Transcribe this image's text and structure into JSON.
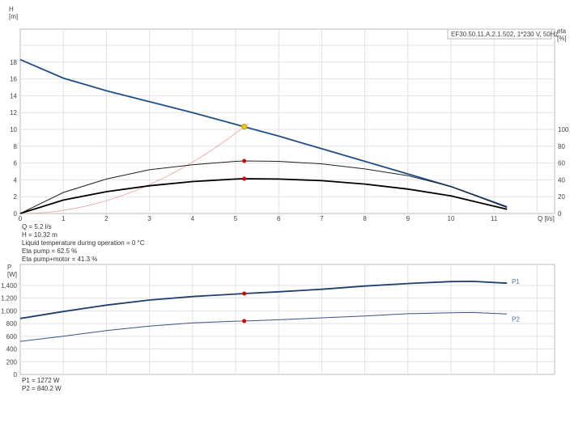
{
  "chart_data": [
    {
      "type": "line",
      "title": "EF30.50.11.A.2.1.502, 1*230 V, 50Hz",
      "xlabel": "Q [l/s]",
      "ylabel": "H\n[m]",
      "y2label": "eta\n[%]",
      "xlim": [
        0,
        12
      ],
      "ylim": [
        0,
        20
      ],
      "y2lim": [
        0,
        100
      ],
      "xticks": [
        0,
        1,
        2,
        3,
        4,
        5,
        6,
        7,
        8,
        9,
        10,
        11
      ],
      "yticks": [
        0,
        2,
        4,
        6,
        8,
        10,
        12,
        14,
        16,
        18
      ],
      "y2ticks": [
        0,
        20,
        40,
        60,
        80,
        100
      ],
      "grid": true,
      "x": [
        0,
        1,
        2,
        3,
        4,
        5,
        5.2,
        6,
        7,
        8,
        9,
        10,
        11.3
      ],
      "series": [
        {
          "key": "H",
          "axis": "left",
          "color": "#1f4e87",
          "values": [
            18.3,
            16.1,
            14.6,
            13.3,
            12.0,
            10.6,
            10.32,
            9.2,
            7.7,
            6.2,
            4.7,
            3.2,
            0.8
          ]
        },
        {
          "key": "eta_pump",
          "axis": "right",
          "color": "#222222",
          "values": [
            0,
            25,
            41,
            52,
            58,
            62,
            62.5,
            62,
            59,
            53,
            45,
            32,
            7
          ]
        },
        {
          "key": "eta_total",
          "axis": "right",
          "color": "#000000",
          "values": [
            0,
            16,
            26,
            33,
            38,
            41,
            41.3,
            41,
            39,
            35,
            29,
            21,
            5
          ]
        }
      ],
      "system_curve": {
        "color": "#e8a0a0",
        "through": [
          5.2,
          10.32
        ]
      },
      "duty_point": {
        "q": 5.2,
        "h": 10.32,
        "eta_pump": 62.5,
        "eta_total": 41.3,
        "color": "#f5c400",
        "marker_color": "#e00000"
      }
    },
    {
      "type": "line",
      "ylabel": "P\n[W]",
      "xlim": [
        0,
        12
      ],
      "ylim": [
        0,
        1600
      ],
      "yticks": [
        0,
        200,
        400,
        600,
        800,
        1000,
        1200,
        1400
      ],
      "ytick_labels": [
        "0",
        "200",
        "400",
        "600",
        "800",
        "1,000",
        "1,200",
        "1,400"
      ],
      "grid": true,
      "x": [
        0,
        1,
        2,
        3,
        4,
        5,
        5.2,
        6,
        7,
        8,
        9,
        10,
        10.5,
        11.3
      ],
      "series": [
        {
          "name": "P1",
          "color": "#1f3f6e",
          "values": [
            880,
            990,
            1090,
            1170,
            1225,
            1265,
            1272,
            1300,
            1340,
            1390,
            1430,
            1460,
            1465,
            1435
          ]
        },
        {
          "name": "P2",
          "color": "#3a5580",
          "values": [
            520,
            600,
            690,
            760,
            810,
            838,
            840,
            860,
            890,
            920,
            955,
            970,
            975,
            950
          ]
        }
      ],
      "duty_point": {
        "q": 5.2,
        "p1": 1272,
        "p2": 840.2
      }
    }
  ],
  "info_top": [
    "Q = 5.2 l/s",
    "H = 10.32 m",
    "Liquid temperature during operation = 0 °C",
    "Eta pump = 62.5 %",
    "Eta pump+motor = 41.3 %"
  ],
  "info_bottom": [
    "P1 = 1272 W",
    "P2 = 840.2 W"
  ]
}
